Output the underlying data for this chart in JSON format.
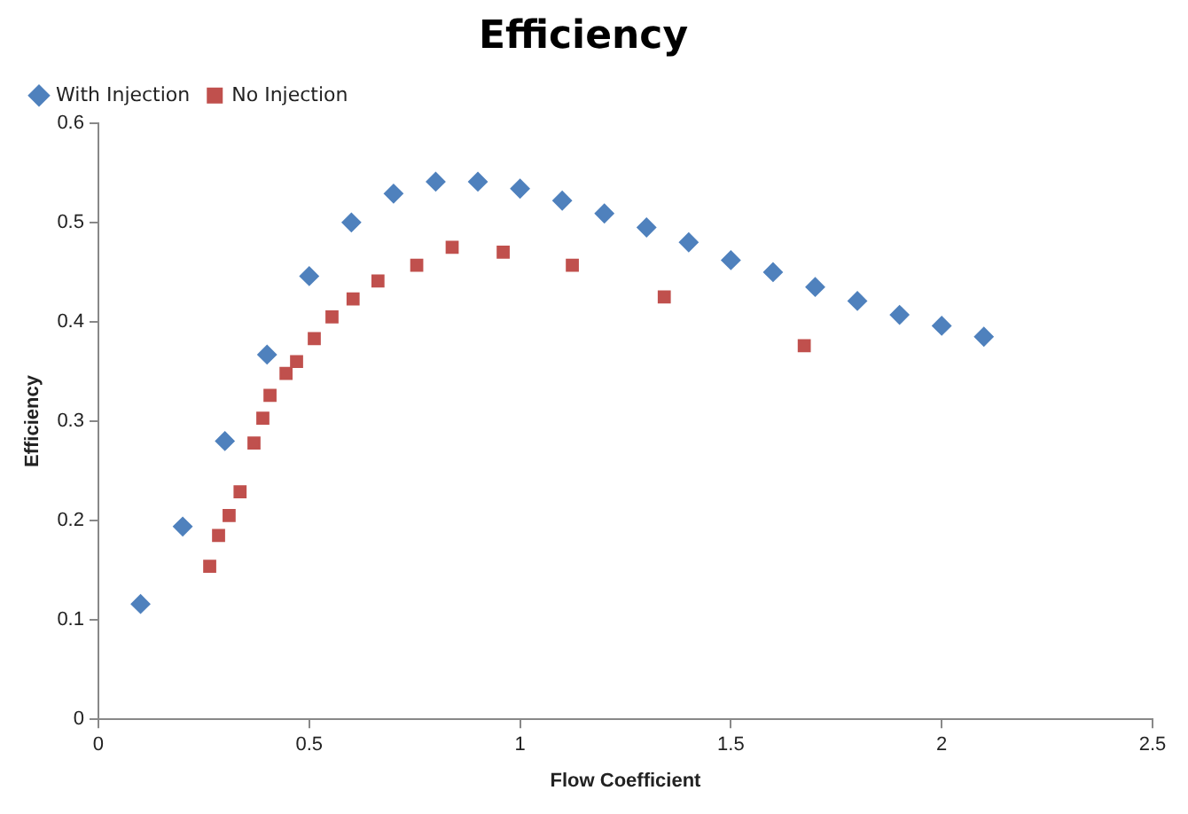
{
  "chart_data": {
    "type": "scatter",
    "title": "Efficiency",
    "xlabel": "Flow Coefficient",
    "ylabel": "Efficiency",
    "xlim": [
      0,
      2.5
    ],
    "xticks": [
      0,
      0.5,
      1,
      1.5,
      2,
      2.5
    ],
    "ylim": [
      0,
      0.6
    ],
    "yticks": [
      0,
      0.1,
      0.2,
      0.3,
      0.4,
      0.5,
      0.6
    ],
    "grid": false,
    "legend": "top left",
    "series": [
      {
        "name": "With Injection",
        "color": "#4f81bd",
        "marker": "diamond",
        "x": [
          0.1,
          0.2,
          0.3,
          0.4,
          0.5,
          0.6,
          0.7,
          0.8,
          0.9,
          1.0,
          1.1,
          1.2,
          1.3,
          1.4,
          1.5,
          1.6,
          1.7,
          1.8,
          1.9,
          2.0,
          2.1
        ],
        "values": [
          0.116,
          0.194,
          0.28,
          0.367,
          0.446,
          0.5,
          0.529,
          0.541,
          0.541,
          0.534,
          0.522,
          0.509,
          0.495,
          0.48,
          0.462,
          0.45,
          0.435,
          0.421,
          0.407,
          0.396,
          0.385
        ]
      },
      {
        "name": "No Injection",
        "color": "#c0504d",
        "marker": "square",
        "x": [
          0.264,
          0.285,
          0.31,
          0.336,
          0.369,
          0.39,
          0.407,
          0.445,
          0.47,
          0.512,
          0.554,
          0.604,
          0.663,
          0.755,
          0.839,
          0.96,
          1.124,
          1.342,
          1.674
        ],
        "values": [
          0.154,
          0.185,
          0.205,
          0.229,
          0.278,
          0.303,
          0.326,
          0.348,
          0.36,
          0.383,
          0.405,
          0.423,
          0.441,
          0.457,
          0.475,
          0.47,
          0.457,
          0.425,
          0.376
        ]
      }
    ]
  }
}
